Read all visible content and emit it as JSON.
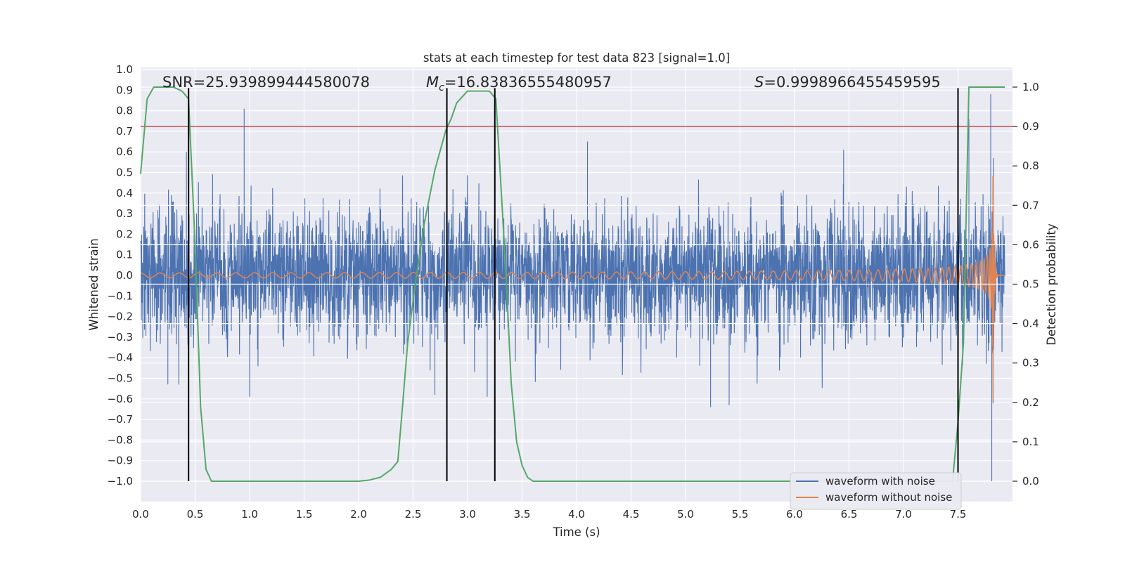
{
  "chart_data": {
    "type": "line",
    "title": "stats at each timestep for test data 823 [signal=1.0]",
    "xlabel": "Time (s)",
    "ylabel": "Whitened strain",
    "y2label": "Detection probability",
    "xlim": [
      0.0,
      8.0
    ],
    "ylim": [
      -1.09,
      1.01
    ],
    "y2lim": [
      -0.045,
      1.045
    ],
    "grid": true,
    "xticks": [
      "0.0",
      "0.5",
      "1.0",
      "1.5",
      "2.0",
      "2.5",
      "3.0",
      "3.5",
      "4.0",
      "4.5",
      "5.0",
      "5.5",
      "6.0",
      "6.5",
      "7.0",
      "7.5"
    ],
    "yticks": [
      "1.0",
      "0.9",
      "0.8",
      "0.7",
      "0.6",
      "0.5",
      "0.4",
      "0.3",
      "0.2",
      "0.1",
      "0.0",
      "−0.1",
      "−0.2",
      "−0.3",
      "−0.4",
      "−0.5",
      "−0.6",
      "−0.7",
      "−0.8",
      "−0.9",
      "−1.0"
    ],
    "y2ticks": [
      "1.0",
      "0.9",
      "0.8",
      "0.7",
      "0.6",
      "0.5",
      "0.4",
      "0.3",
      "0.2",
      "0.1",
      "0.0"
    ],
    "annotations": {
      "snr": "SNR=25.939899444580078",
      "mc_symbol": "M",
      "mc_sub": "c",
      "mc_value": "=16.83836555480957",
      "s_symbol": "S",
      "s_value": "=0.9998966455459595"
    },
    "legend": {
      "position": "lower-right",
      "entries": [
        "waveform with noise",
        "waveform without noise"
      ]
    },
    "colors": {
      "noise": "#4c72b0",
      "clean": "#dd8452",
      "probability": "#55a868",
      "threshold": "#c44e52",
      "markers": "#000000",
      "background": "#eaeaf2",
      "grid": "#ffffff"
    },
    "series": [
      {
        "name": "waveform with noise",
        "kind": "noise",
        "axis": "left",
        "noise_std": 0.155,
        "t_end": 7.93,
        "spike_events": [
          {
            "t": 0.42,
            "v": 0.6
          },
          {
            "t": 0.95,
            "v": 0.81
          },
          {
            "t": 0.25,
            "v": -0.53
          },
          {
            "t": 1.0,
            "v": -0.59
          },
          {
            "t": 2.7,
            "v": -0.58
          },
          {
            "t": 3.18,
            "v": -0.59
          },
          {
            "t": 4.1,
            "v": 0.65
          },
          {
            "t": 5.23,
            "v": -0.64
          },
          {
            "t": 5.4,
            "v": -0.63
          },
          {
            "t": 6.45,
            "v": 0.61
          },
          {
            "t": 7.6,
            "v": 0.76
          },
          {
            "t": 7.8,
            "v": 0.88
          },
          {
            "t": 7.81,
            "v": -1.0
          }
        ]
      },
      {
        "name": "waveform without noise",
        "kind": "chirp",
        "axis": "left",
        "t_merger": 7.82,
        "t_end": 7.93,
        "amplitude_start": 0.012,
        "amplitude_peak": 0.82,
        "cycles_visible": 70
      },
      {
        "name": "detection probability",
        "axis": "right",
        "x": [
          0.0,
          0.06,
          0.12,
          0.2,
          0.3,
          0.38,
          0.44,
          0.5,
          0.55,
          0.6,
          0.65,
          0.68,
          0.72,
          1.0,
          1.5,
          2.0,
          2.1,
          2.2,
          2.3,
          2.36,
          2.4,
          2.45,
          2.52,
          2.6,
          2.7,
          2.8,
          2.85,
          2.9,
          3.0,
          3.2,
          3.26,
          3.35,
          3.4,
          3.45,
          3.5,
          3.55,
          3.6,
          4.0,
          5.0,
          6.0,
          7.0,
          7.35,
          7.45,
          7.5,
          7.55,
          7.6,
          7.93
        ],
        "y": [
          0.78,
          0.97,
          1.0,
          1.0,
          1.0,
          0.99,
          0.97,
          0.6,
          0.19,
          0.03,
          0.0,
          0.0,
          0.0,
          0.0,
          0.0,
          0.0,
          0.003,
          0.01,
          0.03,
          0.05,
          0.18,
          0.35,
          0.5,
          0.65,
          0.79,
          0.89,
          0.92,
          0.96,
          0.99,
          0.99,
          0.97,
          0.54,
          0.25,
          0.1,
          0.04,
          0.01,
          0.0,
          0.0,
          0.0,
          0.0,
          0.0,
          0.0,
          0.0,
          0.15,
          0.35,
          1.0,
          1.0
        ]
      }
    ],
    "threshold": 0.9,
    "vlines": [
      0.44,
      2.81,
      3.25,
      7.5
    ],
    "vline_range": [
      -1.0,
      0.91
    ]
  }
}
